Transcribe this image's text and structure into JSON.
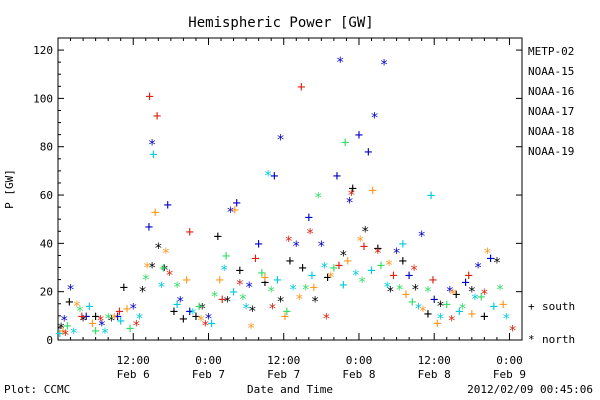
{
  "chart_data": {
    "type": "scatter",
    "title": "Hemispheric Power [GW]",
    "ylabel": "P [GW]",
    "xlabel": "Date and Time",
    "ylim": [
      0,
      125
    ],
    "xlim_hours": [
      0,
      74
    ],
    "yticks": [
      0,
      20,
      40,
      60,
      80,
      100,
      120
    ],
    "xticks": [
      {
        "h": 12,
        "top": "12:00",
        "bottom": "Feb 6"
      },
      {
        "h": 24,
        "top": "0:00",
        "bottom": "Feb 7"
      },
      {
        "h": 36,
        "top": "12:00",
        "bottom": "Feb 7"
      },
      {
        "h": 48,
        "top": "0:00",
        "bottom": "Feb 8"
      },
      {
        "h": 60,
        "top": "12:00",
        "bottom": "Feb 8"
      },
      {
        "h": 72,
        "top": "0:00",
        "bottom": "Feb 9"
      }
    ],
    "grid": false,
    "legend_position": "right",
    "markers": {
      "south": "+",
      "north": "*"
    },
    "marker_legend": {
      "south": "south",
      "north": "north"
    },
    "series": [
      {
        "name": "METP-02",
        "color": "#000000",
        "points": [
          {
            "x": 0.5,
            "y": 5,
            "m": "*"
          },
          {
            "x": 1.8,
            "y": 16,
            "m": "+"
          },
          {
            "x": 4,
            "y": 8,
            "m": "*"
          },
          {
            "x": 6,
            "y": 10,
            "m": "+"
          },
          {
            "x": 8.5,
            "y": 8,
            "m": "*"
          },
          {
            "x": 10.5,
            "y": 22,
            "m": "+"
          },
          {
            "x": 13.5,
            "y": 20,
            "m": "*"
          },
          {
            "x": 15,
            "y": 30,
            "m": "*"
          },
          {
            "x": 16,
            "y": 38,
            "m": "*"
          },
          {
            "x": 17,
            "y": 29,
            "m": "*"
          },
          {
            "x": 18.5,
            "y": 12,
            "m": "+"
          },
          {
            "x": 20,
            "y": 9,
            "m": "+"
          },
          {
            "x": 22,
            "y": 10,
            "m": "+"
          },
          {
            "x": 23,
            "y": 13,
            "m": "*"
          },
          {
            "x": 25.5,
            "y": 43,
            "m": "+"
          },
          {
            "x": 27,
            "y": 16,
            "m": "*"
          },
          {
            "x": 29,
            "y": 29,
            "m": "+"
          },
          {
            "x": 31,
            "y": 12,
            "m": "*"
          },
          {
            "x": 33,
            "y": 24,
            "m": "+"
          },
          {
            "x": 35.5,
            "y": 16,
            "m": "*"
          },
          {
            "x": 37,
            "y": 33,
            "m": "+"
          },
          {
            "x": 39,
            "y": 30,
            "m": "+"
          },
          {
            "x": 41,
            "y": 16,
            "m": "*"
          },
          {
            "x": 43,
            "y": 26,
            "m": "+"
          },
          {
            "x": 45.5,
            "y": 35,
            "m": "*"
          },
          {
            "x": 47,
            "y": 63,
            "m": "+"
          },
          {
            "x": 49,
            "y": 45,
            "m": "*"
          },
          {
            "x": 51,
            "y": 38,
            "m": "+"
          },
          {
            "x": 53,
            "y": 20,
            "m": "*"
          },
          {
            "x": 55,
            "y": 33,
            "m": "+"
          },
          {
            "x": 57,
            "y": 21,
            "m": "*"
          },
          {
            "x": 59,
            "y": 11,
            "m": "+"
          },
          {
            "x": 61,
            "y": 14,
            "m": "*"
          },
          {
            "x": 63.5,
            "y": 19,
            "m": "+"
          },
          {
            "x": 66,
            "y": 20,
            "m": "*"
          },
          {
            "x": 68,
            "y": 10,
            "m": "+"
          },
          {
            "x": 70,
            "y": 32,
            "m": "*"
          }
        ]
      },
      {
        "name": "NOAA-15",
        "color": "#0000cc",
        "points": [
          {
            "x": 1,
            "y": 8,
            "m": "*"
          },
          {
            "x": 2,
            "y": 21,
            "m": "*"
          },
          {
            "x": 4.5,
            "y": 10,
            "m": "+"
          },
          {
            "x": 7,
            "y": 6,
            "m": "*"
          },
          {
            "x": 9.5,
            "y": 10,
            "m": "+"
          },
          {
            "x": 12,
            "y": 13,
            "m": "*"
          },
          {
            "x": 14.5,
            "y": 47,
            "m": "+"
          },
          {
            "x": 15,
            "y": 81,
            "m": "*"
          },
          {
            "x": 17.5,
            "y": 56,
            "m": "+"
          },
          {
            "x": 19.5,
            "y": 16,
            "m": "*"
          },
          {
            "x": 21,
            "y": 12,
            "m": "+"
          },
          {
            "x": 24,
            "y": 9,
            "m": "*"
          },
          {
            "x": 27.5,
            "y": 53,
            "m": "*"
          },
          {
            "x": 28.5,
            "y": 57,
            "m": "+"
          },
          {
            "x": 30.5,
            "y": 22,
            "m": "*"
          },
          {
            "x": 32,
            "y": 40,
            "m": "+"
          },
          {
            "x": 34.5,
            "y": 68,
            "m": "+"
          },
          {
            "x": 35.5,
            "y": 83,
            "m": "*"
          },
          {
            "x": 38,
            "y": 39,
            "m": "*"
          },
          {
            "x": 40,
            "y": 51,
            "m": "+"
          },
          {
            "x": 42,
            "y": 39,
            "m": "*"
          },
          {
            "x": 44.5,
            "y": 68,
            "m": "+"
          },
          {
            "x": 45,
            "y": 115,
            "m": "*"
          },
          {
            "x": 46.5,
            "y": 57,
            "m": "*"
          },
          {
            "x": 48,
            "y": 85,
            "m": "+"
          },
          {
            "x": 49.5,
            "y": 78,
            "m": "+"
          },
          {
            "x": 50.5,
            "y": 92,
            "m": "*"
          },
          {
            "x": 52,
            "y": 114,
            "m": "*"
          },
          {
            "x": 54,
            "y": 36,
            "m": "*"
          },
          {
            "x": 56,
            "y": 27,
            "m": "+"
          },
          {
            "x": 58,
            "y": 43,
            "m": "*"
          },
          {
            "x": 60,
            "y": 17,
            "m": "+"
          },
          {
            "x": 62.5,
            "y": 20,
            "m": "*"
          },
          {
            "x": 65,
            "y": 24,
            "m": "+"
          },
          {
            "x": 67,
            "y": 30,
            "m": "*"
          },
          {
            "x": 69,
            "y": 34,
            "m": "+"
          }
        ]
      },
      {
        "name": "NOAA-16",
        "color": "#00ccdd",
        "points": [
          {
            "x": 0.3,
            "y": 3,
            "m": "+"
          },
          {
            "x": 2.5,
            "y": 3,
            "m": "*"
          },
          {
            "x": 5,
            "y": 14,
            "m": "+"
          },
          {
            "x": 7.5,
            "y": 3,
            "m": "*"
          },
          {
            "x": 10,
            "y": 8,
            "m": "+"
          },
          {
            "x": 13,
            "y": 9,
            "m": "*"
          },
          {
            "x": 15.2,
            "y": 77,
            "m": "+"
          },
          {
            "x": 16.5,
            "y": 22,
            "m": "*"
          },
          {
            "x": 19,
            "y": 15,
            "m": "+"
          },
          {
            "x": 21.5,
            "y": 11,
            "m": "*"
          },
          {
            "x": 24.5,
            "y": 7,
            "m": "+"
          },
          {
            "x": 26.5,
            "y": 29,
            "m": "*"
          },
          {
            "x": 28,
            "y": 20,
            "m": "+"
          },
          {
            "x": 30,
            "y": 13,
            "m": "*"
          },
          {
            "x": 33.5,
            "y": 68,
            "m": "*"
          },
          {
            "x": 35,
            "y": 25,
            "m": "+"
          },
          {
            "x": 37.5,
            "y": 21,
            "m": "*"
          },
          {
            "x": 40.5,
            "y": 27,
            "m": "+"
          },
          {
            "x": 42.5,
            "y": 30,
            "m": "*"
          },
          {
            "x": 45.5,
            "y": 23,
            "m": "+"
          },
          {
            "x": 47.5,
            "y": 27,
            "m": "*"
          },
          {
            "x": 50,
            "y": 29,
            "m": "+"
          },
          {
            "x": 52.5,
            "y": 22,
            "m": "*"
          },
          {
            "x": 55,
            "y": 40,
            "m": "+"
          },
          {
            "x": 57.5,
            "y": 13,
            "m": "*"
          },
          {
            "x": 59.5,
            "y": 60,
            "m": "+"
          },
          {
            "x": 61,
            "y": 9,
            "m": "*"
          },
          {
            "x": 64,
            "y": 12,
            "m": "+"
          },
          {
            "x": 66.5,
            "y": 17,
            "m": "*"
          },
          {
            "x": 69.5,
            "y": 14,
            "m": "+"
          },
          {
            "x": 71.5,
            "y": 9,
            "m": "*"
          }
        ]
      },
      {
        "name": "NOAA-17",
        "color": "#33dd66",
        "points": [
          {
            "x": 1.5,
            "y": 6,
            "m": "+"
          },
          {
            "x": 3.5,
            "y": 12,
            "m": "*"
          },
          {
            "x": 6,
            "y": 4,
            "m": "+"
          },
          {
            "x": 8,
            "y": 9,
            "m": "*"
          },
          {
            "x": 11.5,
            "y": 5,
            "m": "+"
          },
          {
            "x": 14,
            "y": 25,
            "m": "*"
          },
          {
            "x": 16.8,
            "y": 30,
            "m": "+"
          },
          {
            "x": 19,
            "y": 22,
            "m": "*"
          },
          {
            "x": 22.5,
            "y": 14,
            "m": "+"
          },
          {
            "x": 25,
            "y": 18,
            "m": "*"
          },
          {
            "x": 26.8,
            "y": 35,
            "m": "+"
          },
          {
            "x": 29.5,
            "y": 17,
            "m": "*"
          },
          {
            "x": 32.5,
            "y": 28,
            "m": "+"
          },
          {
            "x": 34,
            "y": 20,
            "m": "*"
          },
          {
            "x": 36.5,
            "y": 12,
            "m": "+"
          },
          {
            "x": 39.5,
            "y": 21,
            "m": "*"
          },
          {
            "x": 41.5,
            "y": 59,
            "m": "*"
          },
          {
            "x": 44,
            "y": 30,
            "m": "+"
          },
          {
            "x": 45.8,
            "y": 82,
            "m": "+"
          },
          {
            "x": 48.5,
            "y": 24,
            "m": "*"
          },
          {
            "x": 51.5,
            "y": 31,
            "m": "+"
          },
          {
            "x": 54.5,
            "y": 21,
            "m": "*"
          },
          {
            "x": 56.5,
            "y": 16,
            "m": "+"
          },
          {
            "x": 59,
            "y": 20,
            "m": "*"
          },
          {
            "x": 62,
            "y": 15,
            "m": "+"
          },
          {
            "x": 64.5,
            "y": 13,
            "m": "*"
          },
          {
            "x": 67.5,
            "y": 18,
            "m": "+"
          },
          {
            "x": 70.5,
            "y": 21,
            "m": "*"
          }
        ]
      },
      {
        "name": "NOAA-18",
        "color": "#ff9922",
        "points": [
          {
            "x": 0.8,
            "y": 4,
            "m": "+"
          },
          {
            "x": 3,
            "y": 14,
            "m": "*"
          },
          {
            "x": 5.5,
            "y": 7,
            "m": "+"
          },
          {
            "x": 9,
            "y": 9,
            "m": "*"
          },
          {
            "x": 11,
            "y": 13,
            "m": "+"
          },
          {
            "x": 14.2,
            "y": 30,
            "m": "*"
          },
          {
            "x": 15.5,
            "y": 53,
            "m": "+"
          },
          {
            "x": 17.2,
            "y": 36,
            "m": "*"
          },
          {
            "x": 20.5,
            "y": 25,
            "m": "+"
          },
          {
            "x": 22.8,
            "y": 8,
            "m": "*"
          },
          {
            "x": 25.8,
            "y": 25,
            "m": "+"
          },
          {
            "x": 28.2,
            "y": 54,
            "m": "+"
          },
          {
            "x": 30.8,
            "y": 5,
            "m": "*"
          },
          {
            "x": 33,
            "y": 26,
            "m": "+"
          },
          {
            "x": 36.2,
            "y": 10,
            "m": "+"
          },
          {
            "x": 38.5,
            "y": 17,
            "m": "*"
          },
          {
            "x": 40.8,
            "y": 22,
            "m": "+"
          },
          {
            "x": 43.5,
            "y": 26,
            "m": "*"
          },
          {
            "x": 46.2,
            "y": 33,
            "m": "+"
          },
          {
            "x": 48.2,
            "y": 41,
            "m": "*"
          },
          {
            "x": 50.2,
            "y": 62,
            "m": "+"
          },
          {
            "x": 52.8,
            "y": 31,
            "m": "*"
          },
          {
            "x": 55.5,
            "y": 19,
            "m": "+"
          },
          {
            "x": 58.2,
            "y": 12,
            "m": "*"
          },
          {
            "x": 60.5,
            "y": 7,
            "m": "+"
          },
          {
            "x": 63,
            "y": 19,
            "m": "*"
          },
          {
            "x": 66,
            "y": 11,
            "m": "+"
          },
          {
            "x": 68.5,
            "y": 36,
            "m": "*"
          },
          {
            "x": 71,
            "y": 15,
            "m": "+"
          }
        ]
      },
      {
        "name": "NOAA-19",
        "color": "#dd2211",
        "points": [
          {
            "x": 1.2,
            "y": 2,
            "m": "*"
          },
          {
            "x": 3.8,
            "y": 10,
            "m": "+"
          },
          {
            "x": 6.8,
            "y": 8,
            "m": "*"
          },
          {
            "x": 9.8,
            "y": 12,
            "m": "+"
          },
          {
            "x": 12.5,
            "y": 6,
            "m": "*"
          },
          {
            "x": 14.6,
            "y": 101,
            "m": "+"
          },
          {
            "x": 15.8,
            "y": 93,
            "m": "+"
          },
          {
            "x": 17.8,
            "y": 27,
            "m": "*"
          },
          {
            "x": 21,
            "y": 45,
            "m": "+"
          },
          {
            "x": 23.5,
            "y": 6,
            "m": "*"
          },
          {
            "x": 26.2,
            "y": 17,
            "m": "+"
          },
          {
            "x": 29,
            "y": 23,
            "m": "*"
          },
          {
            "x": 31.5,
            "y": 34,
            "m": "+"
          },
          {
            "x": 34.2,
            "y": 13,
            "m": "*"
          },
          {
            "x": 36.8,
            "y": 41,
            "m": "*"
          },
          {
            "x": 38.8,
            "y": 105,
            "m": "+"
          },
          {
            "x": 40.2,
            "y": 44,
            "m": "*"
          },
          {
            "x": 42.8,
            "y": 9,
            "m": "*"
          },
          {
            "x": 44.8,
            "y": 31,
            "m": "+"
          },
          {
            "x": 46.8,
            "y": 60,
            "m": "*"
          },
          {
            "x": 48.8,
            "y": 39,
            "m": "+"
          },
          {
            "x": 51,
            "y": 36,
            "m": "*"
          },
          {
            "x": 53.5,
            "y": 27,
            "m": "+"
          },
          {
            "x": 56.8,
            "y": 29,
            "m": "*"
          },
          {
            "x": 59.8,
            "y": 25,
            "m": "+"
          },
          {
            "x": 62.8,
            "y": 8,
            "m": "*"
          },
          {
            "x": 65.5,
            "y": 27,
            "m": "+"
          },
          {
            "x": 68,
            "y": 19,
            "m": "*"
          },
          {
            "x": 72.5,
            "y": 4,
            "m": "*"
          }
        ]
      }
    ]
  },
  "footer": {
    "plot_source": "Plot: CCMC",
    "timestamp": "2012/02/09 00:45:06"
  }
}
